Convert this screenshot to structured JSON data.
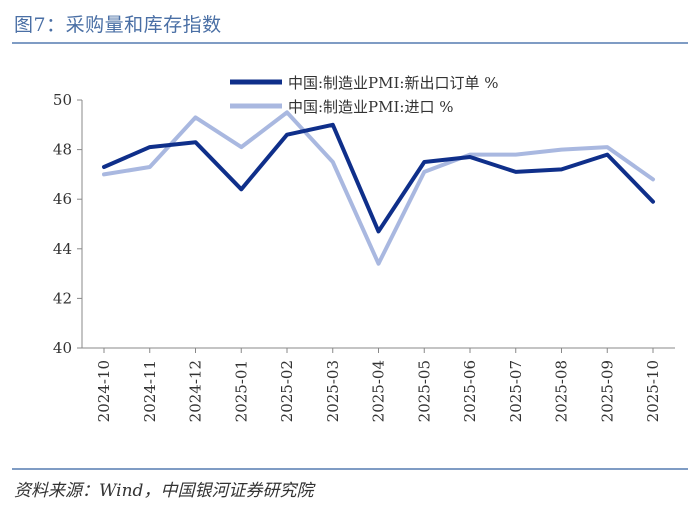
{
  "figure_title": "图7：采购量和库存指数",
  "source": "资料来源：Wind，中国银河证券研究院",
  "colors": {
    "series1": "#0f2f8a",
    "series2": "#a9b8e0",
    "axis": "#888888",
    "title": "#4a6fa5"
  },
  "chart_data": {
    "type": "line",
    "title": "",
    "xlabel": "",
    "ylabel": "",
    "categories": [
      "2024-10",
      "2024-11",
      "2024-12",
      "2025-01",
      "2025-02",
      "2025-03",
      "2025-04",
      "2025-05",
      "2025-06",
      "2025-07",
      "2025-08",
      "2025-09",
      "2025-10"
    ],
    "ylim": [
      40,
      50
    ],
    "yticks": [
      40,
      42,
      44,
      46,
      48,
      50
    ],
    "grid": false,
    "legend_position": "top",
    "series": [
      {
        "name": "中国:制造业PMI:新出口订单 %",
        "color": "#0f2f8a",
        "values": [
          47.3,
          48.1,
          48.3,
          46.4,
          48.6,
          49.0,
          44.7,
          47.5,
          47.7,
          47.1,
          47.2,
          47.8,
          45.9
        ]
      },
      {
        "name": "中国:制造业PMI:进口 %",
        "color": "#a9b8e0",
        "values": [
          47.0,
          47.3,
          49.3,
          48.1,
          49.5,
          47.5,
          43.4,
          47.1,
          47.8,
          47.8,
          48.0,
          48.1,
          46.8
        ]
      }
    ]
  }
}
